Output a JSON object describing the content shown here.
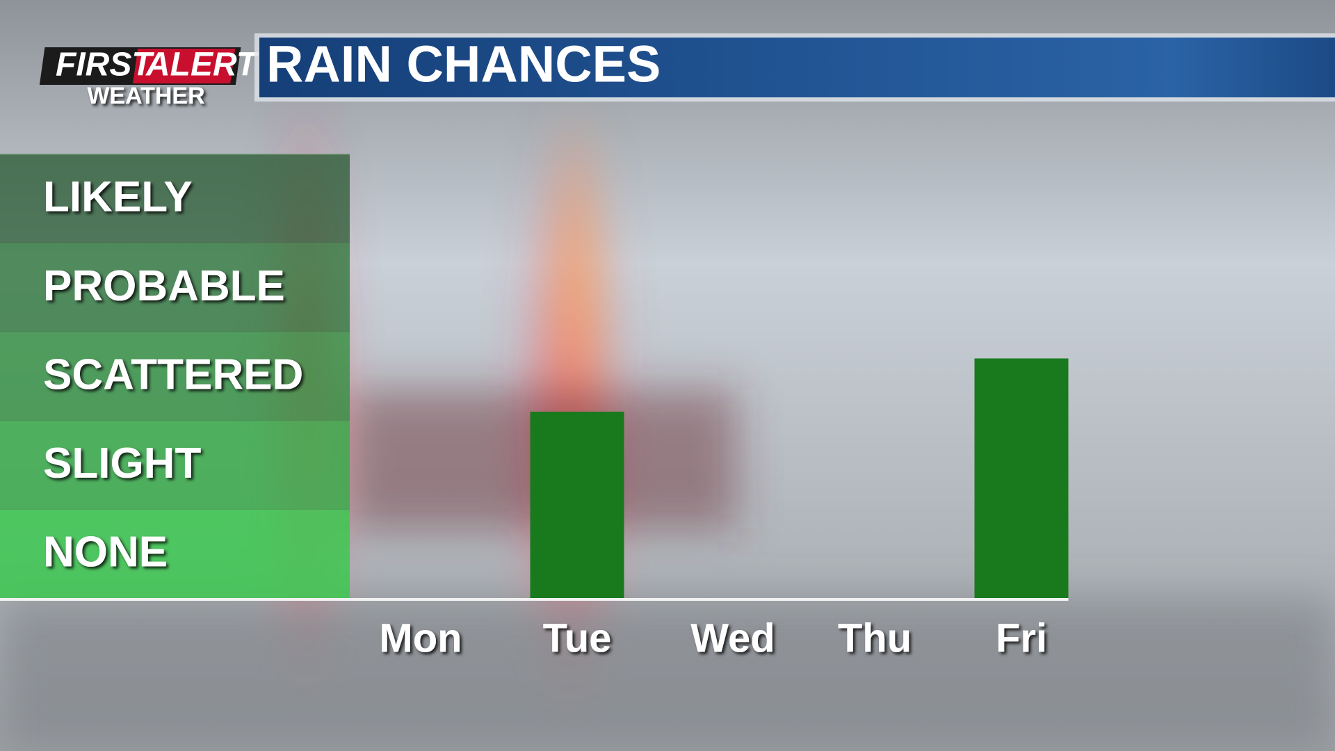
{
  "logo": {
    "first": "FIRST",
    "alert": "ALERT",
    "weather": "WEATHER"
  },
  "chart_data": {
    "type": "bar",
    "title": "RAIN CHANCES",
    "categories": [
      "Mon",
      "Tue",
      "Wed",
      "Thu",
      "Fri"
    ],
    "values": [
      0,
      2.1,
      0,
      0,
      2.7
    ],
    "color": "#187a1d",
    "ylim": [
      0,
      5
    ],
    "yticks": [
      {
        "value": 0.5,
        "label": "NONE"
      },
      {
        "value": 1.5,
        "label": "SLIGHT"
      },
      {
        "value": 2.5,
        "label": "SCATTERED"
      },
      {
        "value": 3.5,
        "label": "PROBABLE"
      },
      {
        "value": 4.5,
        "label": "LIKELY"
      }
    ]
  }
}
